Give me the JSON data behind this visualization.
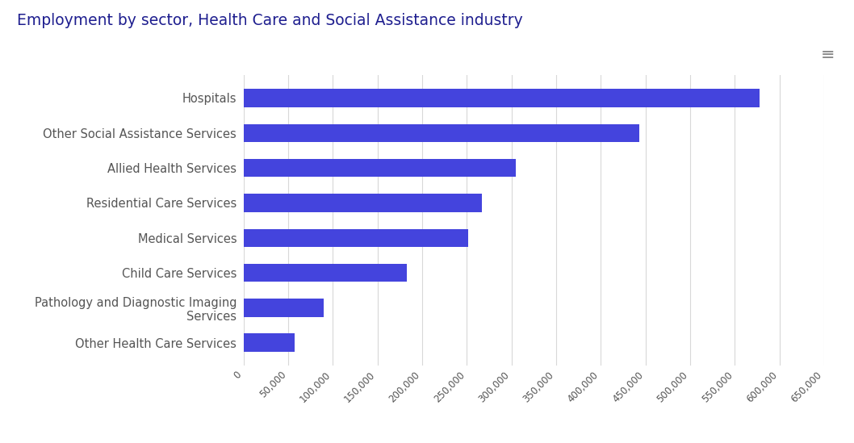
{
  "title": "Employment by sector, Health Care and Social Assistance industry",
  "title_color": "#1e1e8f",
  "title_fontsize": 13.5,
  "categories": [
    "Hospitals",
    "Other Social Assistance Services",
    "Allied Health Services",
    "Residential Care Services",
    "Medical Services",
    "Child Care Services",
    "Pathology and Diagnostic Imaging\nServices",
    "Other Health Care Services"
  ],
  "values": [
    578000,
    443000,
    305000,
    267000,
    252000,
    183000,
    90000,
    57000
  ],
  "bar_color": "#4444dd",
  "xlim": [
    0,
    650000
  ],
  "xtick_interval": 50000,
  "background_color": "#ffffff",
  "label_color": "#555555",
  "label_fontsize": 10.5,
  "tick_fontsize": 8.5,
  "grid_color": "#d8d8d8",
  "bar_height": 0.52
}
